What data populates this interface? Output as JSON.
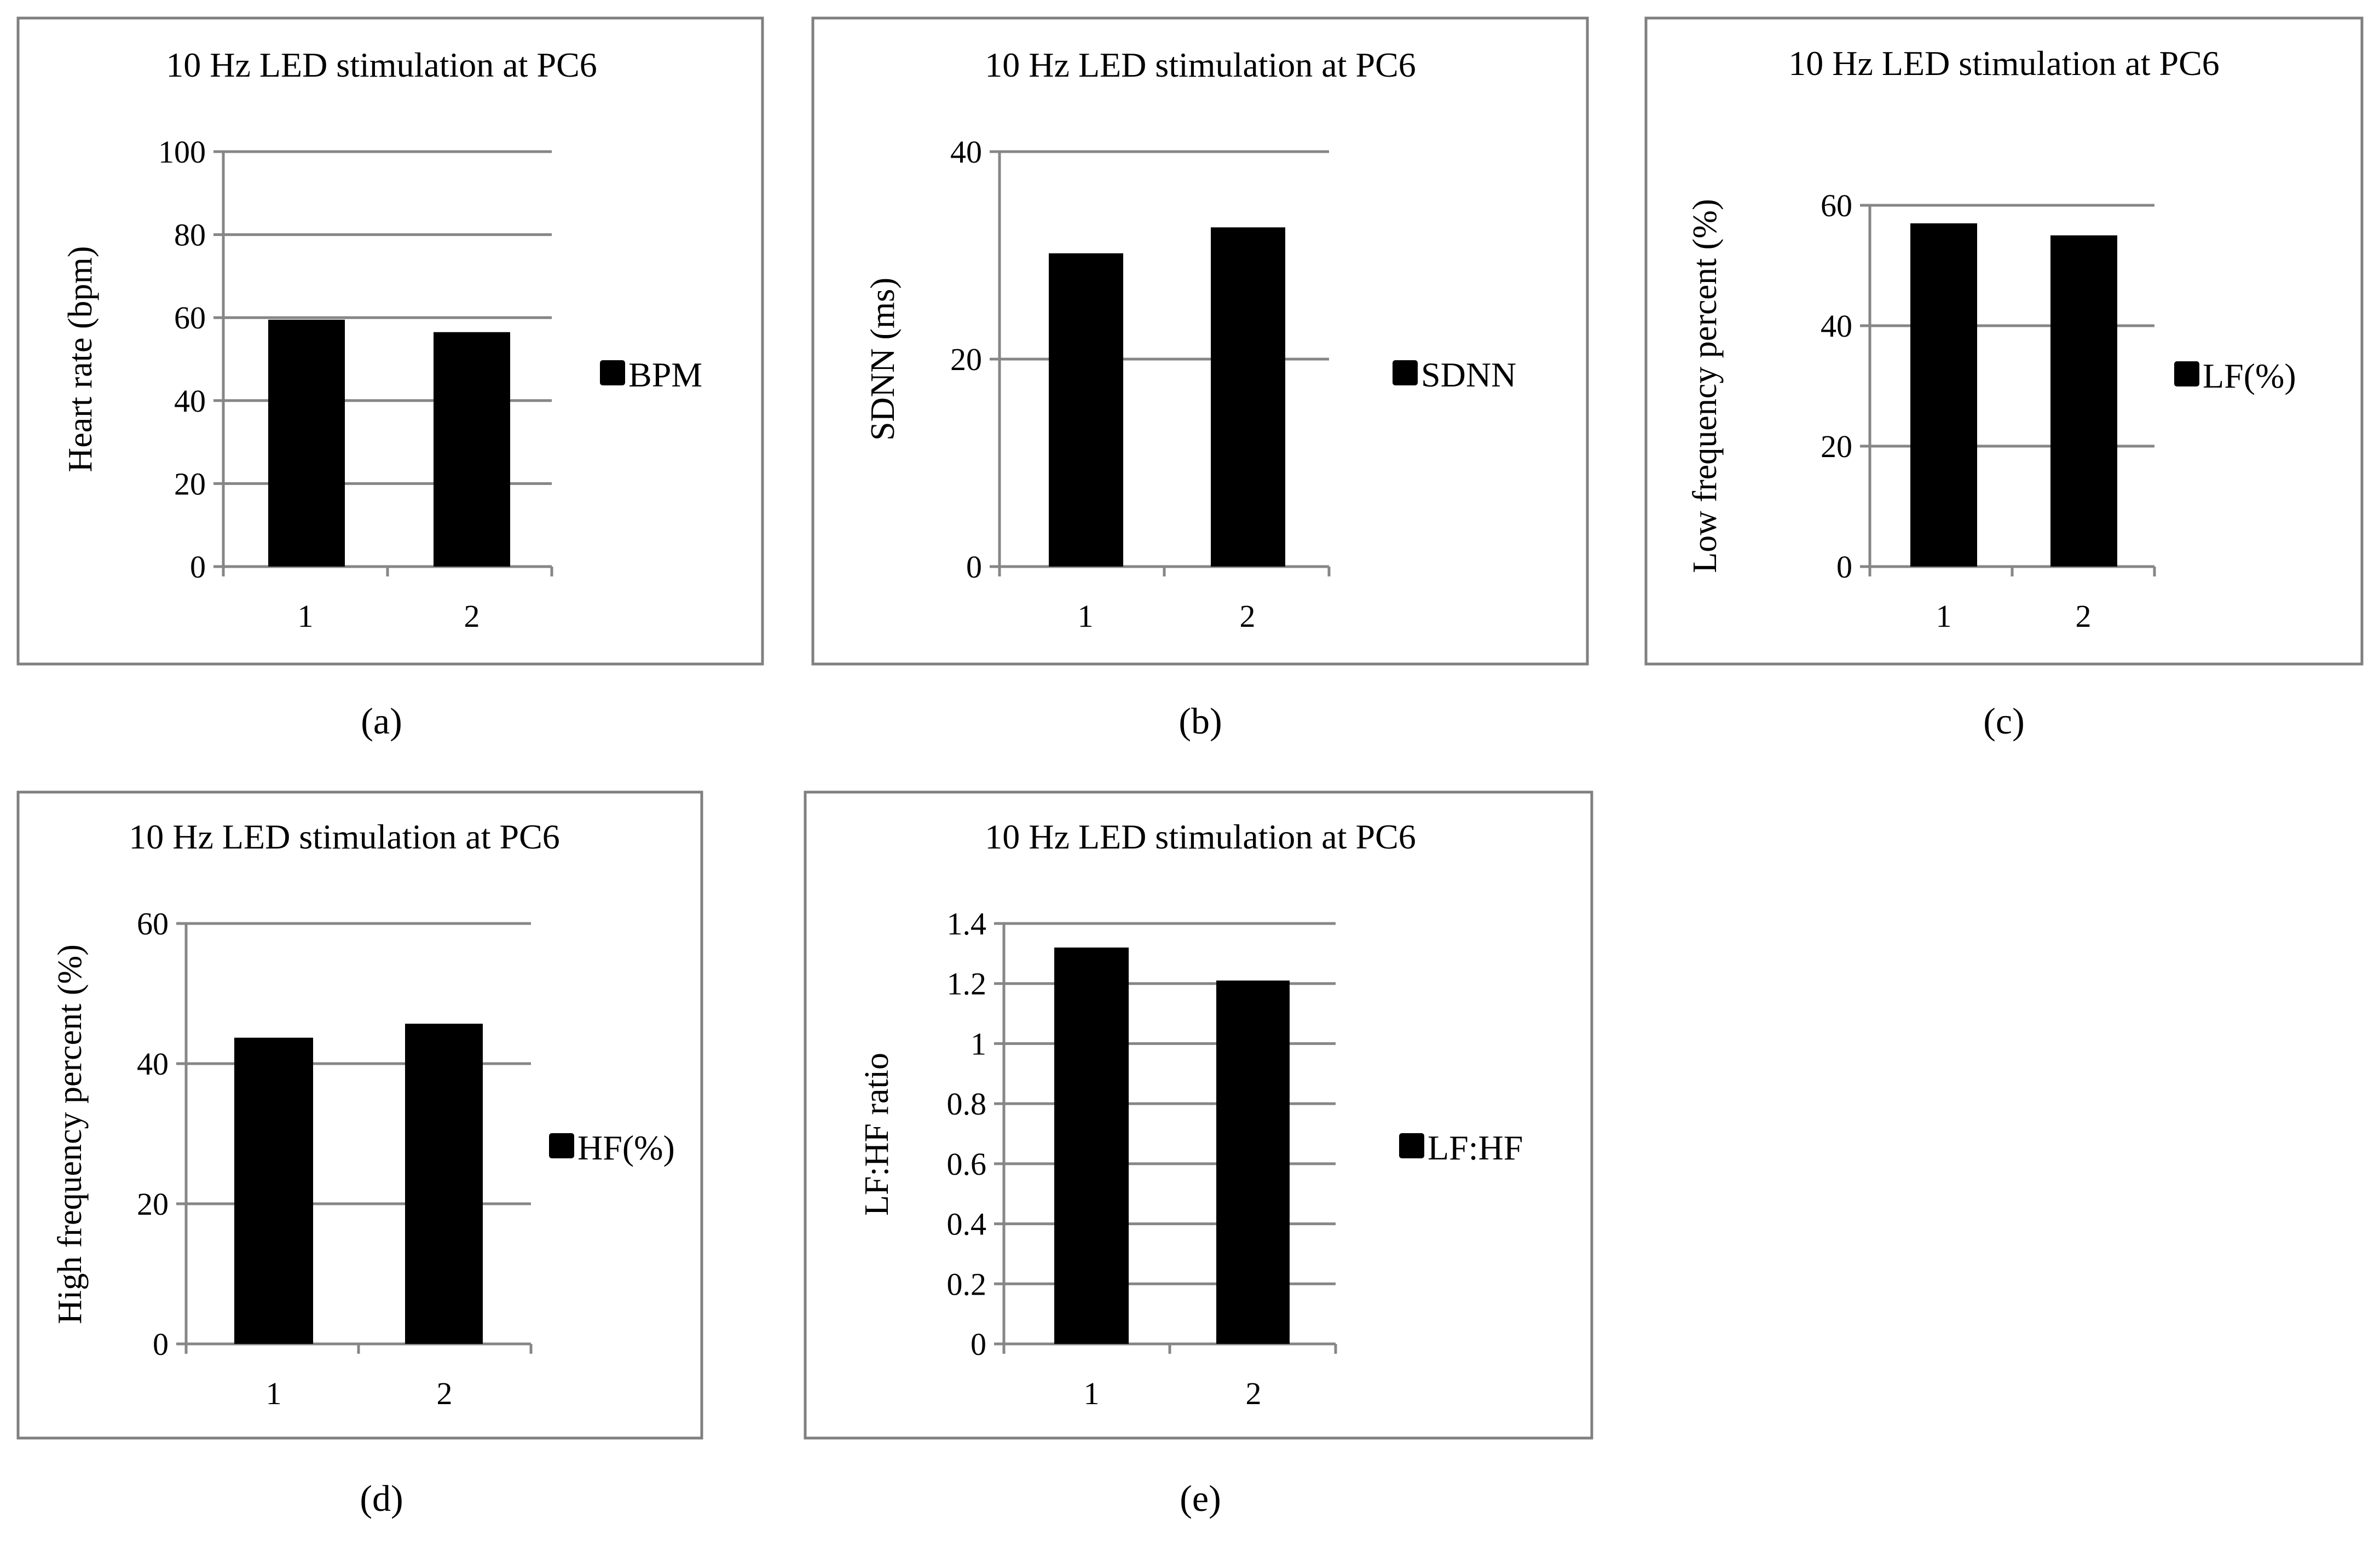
{
  "chart_data": [
    {
      "panel": "(a)",
      "type": "bar",
      "title": "10 Hz LED stimulation at PC6",
      "ylabel": "Heart rate (bpm)",
      "xlabel": "",
      "categories": [
        "1",
        "2"
      ],
      "yticks": [
        "0",
        "20",
        "40",
        "60",
        "80",
        "100"
      ],
      "ylim": [
        0,
        100
      ],
      "legend": "BPM",
      "legend_position": "right",
      "series": [
        {
          "name": "BPM",
          "values": [
            59.5,
            56.5
          ]
        }
      ],
      "color": "#000000"
    },
    {
      "panel": "(b)",
      "type": "bar",
      "title": "10 Hz LED stimulation at PC6",
      "ylabel": "SDNN (ms)",
      "xlabel": "",
      "categories": [
        "1",
        "2"
      ],
      "yticks": [
        "0",
        "20",
        "40"
      ],
      "ylim": [
        0,
        40
      ],
      "legend": "SDNN",
      "legend_position": "right",
      "series": [
        {
          "name": "SDNN",
          "values": [
            30.2,
            32.7
          ]
        }
      ],
      "color": "#000000"
    },
    {
      "panel": "(c)",
      "type": "bar",
      "title": "10 Hz LED stimulation at PC6",
      "ylabel": "Low frequency percent (%)",
      "xlabel": "",
      "categories": [
        "1",
        "2"
      ],
      "yticks": [
        "0",
        "20",
        "40",
        "60"
      ],
      "ylim": [
        0,
        60
      ],
      "legend": "LF(%)",
      "legend_position": "right",
      "series": [
        {
          "name": "LF(%)",
          "values": [
            57,
            55
          ]
        }
      ],
      "color": "#000000"
    },
    {
      "panel": "(d)",
      "type": "bar",
      "title": "10 Hz LED stimulation at PC6",
      "ylabel": "High frequency percent (%)",
      "xlabel": "",
      "categories": [
        "1",
        "2"
      ],
      "yticks": [
        "0",
        "20",
        "40",
        "60"
      ],
      "ylim": [
        0,
        60
      ],
      "legend": "HF(%)",
      "legend_position": "right",
      "series": [
        {
          "name": "HF(%)",
          "values": [
            43.7,
            45.7
          ]
        }
      ],
      "color": "#000000"
    },
    {
      "panel": "(e)",
      "type": "bar",
      "title": "10 Hz LED stimulation at PC6",
      "ylabel": "LF:HF ratio",
      "xlabel": "",
      "categories": [
        "1",
        "2"
      ],
      "yticks": [
        "0",
        "0.2",
        "0.4",
        "0.6",
        "0.8",
        "1",
        "1.2",
        "1.4"
      ],
      "ylim": [
        0,
        1.4
      ],
      "legend": "LF:HF",
      "legend_position": "right",
      "series": [
        {
          "name": "LF:HF",
          "values": [
            1.32,
            1.21
          ]
        }
      ],
      "color": "#000000"
    }
  ]
}
